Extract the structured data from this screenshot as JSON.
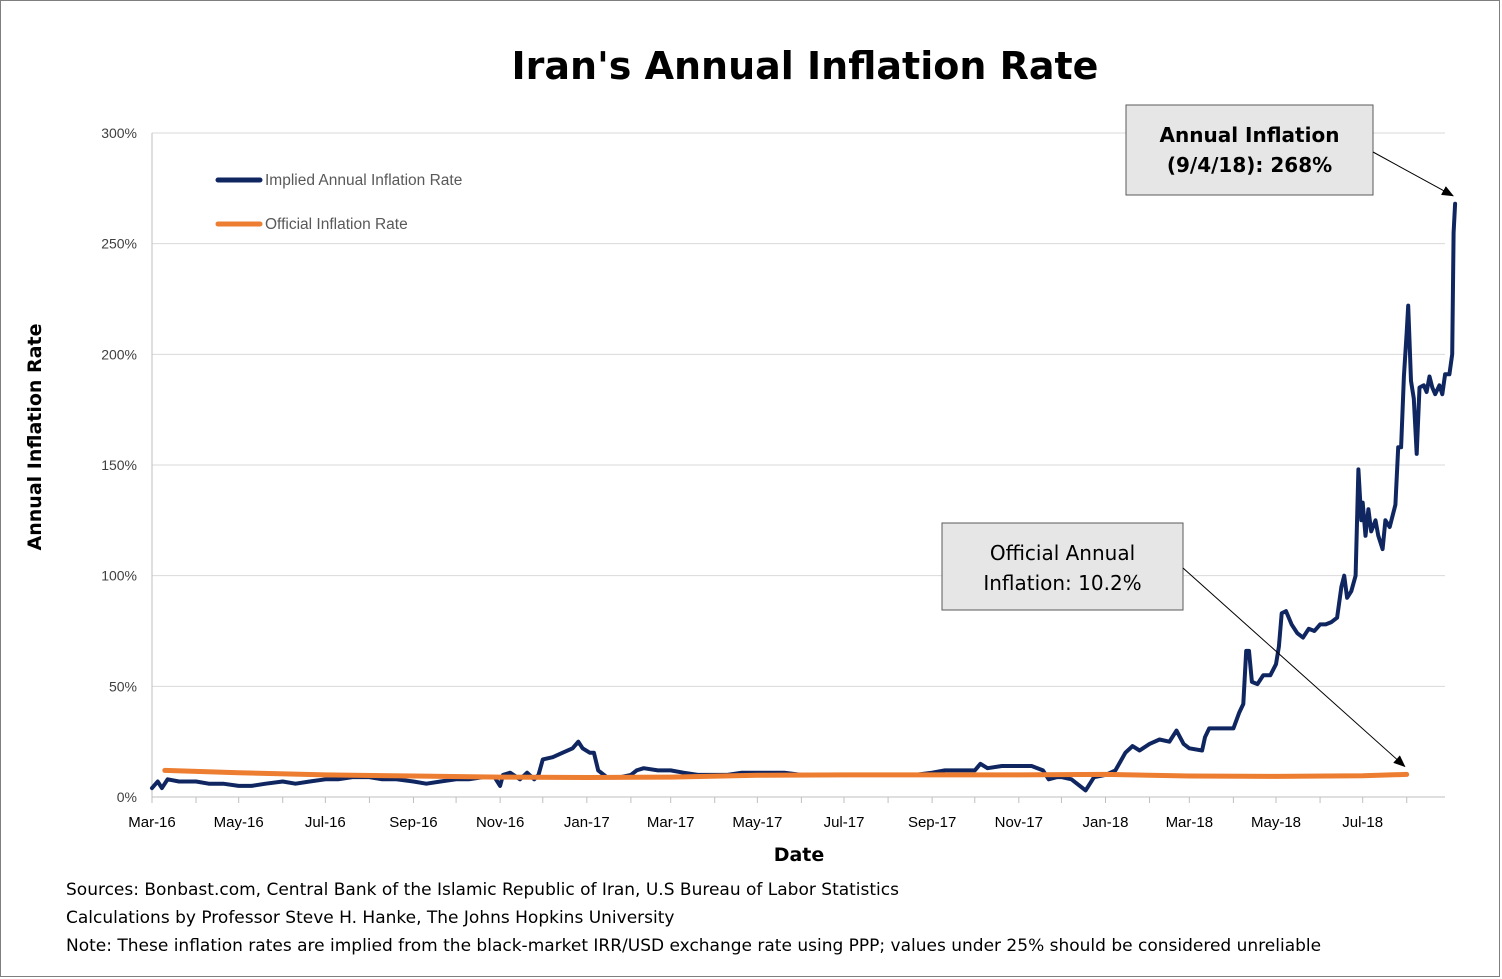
{
  "chart_data": {
    "type": "line",
    "title": "Iran's Annual Inflation Rate",
    "xlabel": "Date",
    "ylabel": "Annual Inflation Rate",
    "x_ticks": [
      "Mar-16",
      "May-16",
      "Jul-16",
      "Sep-16",
      "Nov-16",
      "Jan-17",
      "Mar-17",
      "May-17",
      "Jul-17",
      "Sep-17",
      "Nov-17",
      "Jan-18",
      "Mar-18",
      "May-18",
      "Jul-18"
    ],
    "y_ticks": [
      "0%",
      "50%",
      "100%",
      "150%",
      "200%",
      "250%",
      "300%"
    ],
    "ylim": [
      0,
      300
    ],
    "grid": true,
    "legend_position": "top-left",
    "series": [
      {
        "name": "Implied Annual Inflation Rate",
        "color": "#0f2660",
        "points": [
          [
            "2016-03-01",
            4
          ],
          [
            "2016-03-05",
            7
          ],
          [
            "2016-03-08",
            4
          ],
          [
            "2016-03-12",
            8
          ],
          [
            "2016-03-20",
            7
          ],
          [
            "2016-04-01",
            7
          ],
          [
            "2016-04-10",
            6
          ],
          [
            "2016-04-20",
            6
          ],
          [
            "2016-05-01",
            5
          ],
          [
            "2016-05-10",
            5
          ],
          [
            "2016-05-20",
            6
          ],
          [
            "2016-06-01",
            7
          ],
          [
            "2016-06-10",
            6
          ],
          [
            "2016-06-20",
            7
          ],
          [
            "2016-07-01",
            8
          ],
          [
            "2016-07-10",
            8
          ],
          [
            "2016-07-20",
            9
          ],
          [
            "2016-08-01",
            9
          ],
          [
            "2016-08-10",
            8
          ],
          [
            "2016-08-20",
            8
          ],
          [
            "2016-09-01",
            7
          ],
          [
            "2016-09-10",
            6
          ],
          [
            "2016-09-20",
            7
          ],
          [
            "2016-10-01",
            8
          ],
          [
            "2016-10-10",
            8
          ],
          [
            "2016-10-20",
            9
          ],
          [
            "2016-10-28",
            9
          ],
          [
            "2016-11-01",
            5
          ],
          [
            "2016-11-03",
            10
          ],
          [
            "2016-11-08",
            11
          ],
          [
            "2016-11-15",
            8
          ],
          [
            "2016-11-20",
            11
          ],
          [
            "2016-11-25",
            8
          ],
          [
            "2016-11-28",
            10
          ],
          [
            "2016-12-01",
            17
          ],
          [
            "2016-12-08",
            18
          ],
          [
            "2016-12-15",
            20
          ],
          [
            "2016-12-22",
            22
          ],
          [
            "2016-12-26",
            25
          ],
          [
            "2016-12-29",
            22
          ],
          [
            "2017-01-03",
            20
          ],
          [
            "2017-01-06",
            20
          ],
          [
            "2017-01-09",
            12
          ],
          [
            "2017-01-15",
            9
          ],
          [
            "2017-01-25",
            9
          ],
          [
            "2017-02-01",
            10
          ],
          [
            "2017-02-05",
            12
          ],
          [
            "2017-02-10",
            13
          ],
          [
            "2017-02-20",
            12
          ],
          [
            "2017-03-01",
            12
          ],
          [
            "2017-03-10",
            11
          ],
          [
            "2017-03-20",
            10
          ],
          [
            "2017-04-01",
            10
          ],
          [
            "2017-04-10",
            10
          ],
          [
            "2017-04-20",
            11
          ],
          [
            "2017-05-01",
            11
          ],
          [
            "2017-05-10",
            11
          ],
          [
            "2017-05-20",
            11
          ],
          [
            "2017-06-01",
            10
          ],
          [
            "2017-06-10",
            10
          ],
          [
            "2017-06-20",
            10
          ],
          [
            "2017-07-01",
            10
          ],
          [
            "2017-07-10",
            10
          ],
          [
            "2017-07-20",
            10
          ],
          [
            "2017-08-01",
            10
          ],
          [
            "2017-08-10",
            10
          ],
          [
            "2017-08-20",
            10
          ],
          [
            "2017-09-01",
            11
          ],
          [
            "2017-09-10",
            12
          ],
          [
            "2017-09-20",
            12
          ],
          [
            "2017-10-01",
            12
          ],
          [
            "2017-10-05",
            15
          ],
          [
            "2017-10-10",
            13
          ],
          [
            "2017-10-20",
            14
          ],
          [
            "2017-11-01",
            14
          ],
          [
            "2017-11-10",
            14
          ],
          [
            "2017-11-18",
            12
          ],
          [
            "2017-11-22",
            8
          ],
          [
            "2017-11-28",
            9
          ],
          [
            "2017-12-01",
            9
          ],
          [
            "2017-12-08",
            8
          ],
          [
            "2017-12-14",
            5
          ],
          [
            "2017-12-18",
            3
          ],
          [
            "2017-12-24",
            9
          ],
          [
            "2018-01-01",
            10
          ],
          [
            "2018-01-08",
            12
          ],
          [
            "2018-01-15",
            20
          ],
          [
            "2018-01-20",
            23
          ],
          [
            "2018-01-25",
            21
          ],
          [
            "2018-02-01",
            24
          ],
          [
            "2018-02-08",
            26
          ],
          [
            "2018-02-15",
            25
          ],
          [
            "2018-02-20",
            30
          ],
          [
            "2018-02-25",
            24
          ],
          [
            "2018-03-01",
            22
          ],
          [
            "2018-03-10",
            21
          ],
          [
            "2018-03-12",
            27
          ],
          [
            "2018-03-15",
            31
          ],
          [
            "2018-03-22",
            31
          ],
          [
            "2018-03-28",
            31
          ],
          [
            "2018-04-01",
            31
          ],
          [
            "2018-04-05",
            38
          ],
          [
            "2018-04-08",
            42
          ],
          [
            "2018-04-10",
            66
          ],
          [
            "2018-04-12",
            66
          ],
          [
            "2018-04-14",
            52
          ],
          [
            "2018-04-18",
            51
          ],
          [
            "2018-04-22",
            55
          ],
          [
            "2018-04-27",
            55
          ],
          [
            "2018-05-01",
            60
          ],
          [
            "2018-05-03",
            68
          ],
          [
            "2018-05-05",
            83
          ],
          [
            "2018-05-08",
            84
          ],
          [
            "2018-05-12",
            78
          ],
          [
            "2018-05-16",
            74
          ],
          [
            "2018-05-20",
            72
          ],
          [
            "2018-05-24",
            76
          ],
          [
            "2018-05-28",
            75
          ],
          [
            "2018-06-01",
            78
          ],
          [
            "2018-06-05",
            78
          ],
          [
            "2018-06-09",
            79
          ],
          [
            "2018-06-13",
            81
          ],
          [
            "2018-06-16",
            95
          ],
          [
            "2018-06-18",
            100
          ],
          [
            "2018-06-20",
            90
          ],
          [
            "2018-06-23",
            93
          ],
          [
            "2018-06-26",
            100
          ],
          [
            "2018-06-28",
            148
          ],
          [
            "2018-06-30",
            125
          ],
          [
            "2018-07-01",
            133
          ],
          [
            "2018-07-03",
            118
          ],
          [
            "2018-07-05",
            130
          ],
          [
            "2018-07-07",
            120
          ],
          [
            "2018-07-10",
            125
          ],
          [
            "2018-07-12",
            118
          ],
          [
            "2018-07-15",
            112
          ],
          [
            "2018-07-17",
            125
          ],
          [
            "2018-07-20",
            122
          ],
          [
            "2018-07-24",
            132
          ],
          [
            "2018-07-26",
            158
          ],
          [
            "2018-07-28",
            158
          ],
          [
            "2018-07-30",
            190
          ],
          [
            "2018-08-01",
            210
          ],
          [
            "2018-08-02",
            222
          ],
          [
            "2018-08-04",
            188
          ],
          [
            "2018-08-06",
            180
          ],
          [
            "2018-08-08",
            155
          ],
          [
            "2018-08-10",
            185
          ],
          [
            "2018-08-13",
            186
          ],
          [
            "2018-08-15",
            183
          ],
          [
            "2018-08-17",
            190
          ],
          [
            "2018-08-19",
            185
          ],
          [
            "2018-08-21",
            182
          ],
          [
            "2018-08-24",
            186
          ],
          [
            "2018-08-26",
            182
          ],
          [
            "2018-08-28",
            191
          ],
          [
            "2018-08-31",
            191
          ],
          [
            "2018-09-02",
            200
          ],
          [
            "2018-09-03",
            255
          ],
          [
            "2018-09-04",
            268
          ]
        ]
      },
      {
        "name": "Official Inflation Rate",
        "color": "#ed7d31",
        "points": [
          [
            "2016-03-10",
            12
          ],
          [
            "2016-05-01",
            11
          ],
          [
            "2016-07-01",
            10
          ],
          [
            "2016-09-01",
            9.5
          ],
          [
            "2016-11-01",
            9
          ],
          [
            "2017-01-01",
            8.8
          ],
          [
            "2017-03-01",
            9
          ],
          [
            "2017-05-01",
            9.8
          ],
          [
            "2017-07-01",
            10
          ],
          [
            "2017-09-01",
            10
          ],
          [
            "2017-11-01",
            10
          ],
          [
            "2018-01-01",
            10.2
          ],
          [
            "2018-03-01",
            9.5
          ],
          [
            "2018-05-01",
            9.3
          ],
          [
            "2018-07-01",
            9.6
          ],
          [
            "2018-08-01",
            10.2
          ]
        ]
      }
    ],
    "annotations": [
      {
        "lines": [
          "Annual Inflation",
          "(9/4/18): 268%"
        ],
        "bold": true,
        "points_to": [
          "2018-09-04",
          268
        ]
      },
      {
        "lines": [
          "Official Annual",
          "Inflation: 10.2%"
        ],
        "bold": false,
        "points_to": [
          "2018-08-01",
          10.2
        ]
      }
    ]
  },
  "notes": [
    "Sources: Bonbast.com, Central Bank of the Islamic Republic of Iran, U.S Bureau of Labor Statistics",
    "Calculations by Professor Steve H. Hanke, The Johns Hopkins University",
    "Note: These inflation rates are implied from the black-market IRR/USD exchange rate using PPP; values under 25% should be considered unreliable"
  ]
}
